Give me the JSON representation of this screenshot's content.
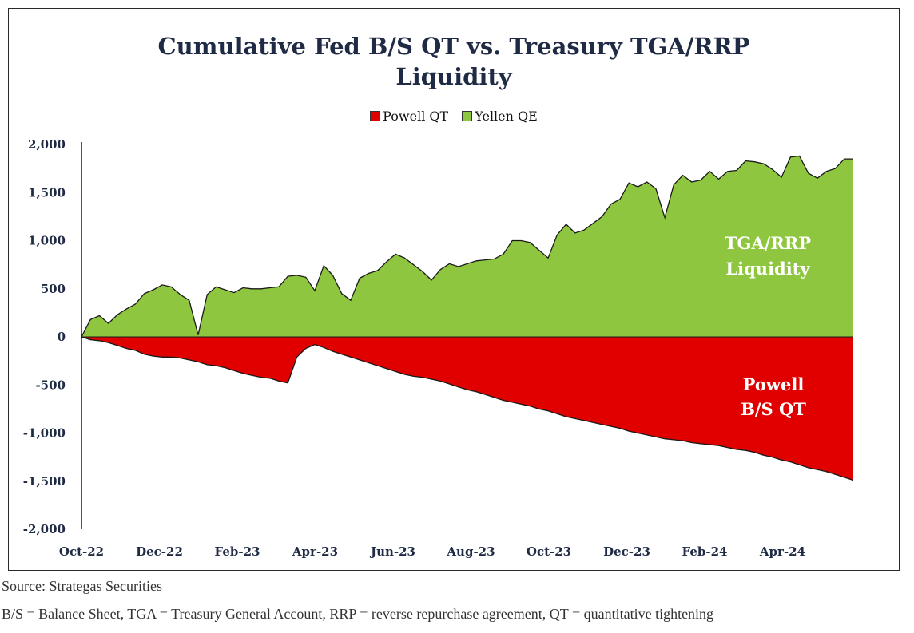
{
  "chart_data": {
    "type": "area",
    "title_line1": "Cumulative Fed B/S QT vs. Treasury TGA/RRP",
    "title_line2": "Liquidity",
    "xlabel": "",
    "ylabel": "",
    "ylim": [
      -2000,
      2000
    ],
    "yticks": [
      2000,
      1500,
      1000,
      500,
      0,
      -500,
      -1000,
      -1500,
      -2000
    ],
    "ytick_labels": [
      "2,000",
      "1,500",
      "1,000",
      "500",
      "0",
      "-500",
      "-1,000",
      "-1,500",
      "-2,000"
    ],
    "xtick_labels": [
      "Oct-22",
      "Dec-22",
      "Feb-23",
      "Apr-23",
      "Jun-23",
      "Aug-23",
      "Oct-23",
      "Dec-23",
      "Feb-24",
      "Apr-24"
    ],
    "x_range_weeks": [
      0,
      86
    ],
    "legend_position": "top-center",
    "grid": false,
    "series": [
      {
        "name": "Powell QT",
        "color": "#e00000",
        "x": [
          0,
          1,
          2,
          3,
          4,
          5,
          6,
          7,
          8,
          9,
          10,
          11,
          12,
          13,
          14,
          15,
          16,
          17,
          18,
          19,
          20,
          21,
          22,
          23,
          24,
          25,
          26,
          27,
          28,
          29,
          30,
          31,
          32,
          33,
          34,
          35,
          36,
          37,
          38,
          39,
          40,
          41,
          42,
          43,
          44,
          45,
          46,
          47,
          48,
          49,
          50,
          51,
          52,
          53,
          54,
          55,
          56,
          57,
          58,
          59,
          60,
          61,
          62,
          63,
          64,
          65,
          66,
          67,
          68,
          69,
          70,
          71,
          72,
          73,
          74,
          75,
          76,
          77,
          78,
          79,
          80,
          81,
          82,
          83,
          84,
          85,
          86
        ],
        "values": [
          0,
          -30,
          -40,
          -60,
          -90,
          -120,
          -140,
          -180,
          -200,
          -210,
          -210,
          -220,
          -240,
          -260,
          -290,
          -300,
          -320,
          -350,
          -380,
          -400,
          -420,
          -430,
          -460,
          -480,
          -210,
          -120,
          -80,
          -110,
          -150,
          -180,
          -210,
          -240,
          -270,
          -300,
          -330,
          -360,
          -390,
          -410,
          -420,
          -440,
          -460,
          -490,
          -520,
          -550,
          -570,
          -600,
          -630,
          -660,
          -680,
          -700,
          -720,
          -750,
          -770,
          -800,
          -830,
          -850,
          -870,
          -890,
          -910,
          -930,
          -950,
          -980,
          -1000,
          -1020,
          -1040,
          -1060,
          -1070,
          -1080,
          -1100,
          -1110,
          -1120,
          -1130,
          -1150,
          -1170,
          -1180,
          -1200,
          -1230,
          -1250,
          -1280,
          -1300,
          -1330,
          -1360,
          -1380,
          -1400,
          -1430,
          -1460,
          -1490
        ]
      },
      {
        "name": "Yellen QE",
        "color": "#8fc640",
        "x": [
          0,
          1,
          2,
          3,
          4,
          5,
          6,
          7,
          8,
          9,
          10,
          11,
          12,
          13,
          14,
          15,
          16,
          17,
          18,
          19,
          20,
          21,
          22,
          23,
          24,
          25,
          26,
          27,
          28,
          29,
          30,
          31,
          32,
          33,
          34,
          35,
          36,
          37,
          38,
          39,
          40,
          41,
          42,
          43,
          44,
          45,
          46,
          47,
          48,
          49,
          50,
          51,
          52,
          53,
          54,
          55,
          56,
          57,
          58,
          59,
          60,
          61,
          62,
          63,
          64,
          65,
          66,
          67,
          68,
          69,
          70,
          71,
          72,
          73,
          74,
          75,
          76,
          77,
          78,
          79,
          80,
          81,
          82,
          83,
          84,
          85,
          86
        ],
        "values": [
          0,
          180,
          220,
          140,
          230,
          290,
          340,
          450,
          490,
          540,
          520,
          440,
          380,
          20,
          440,
          520,
          490,
          460,
          510,
          500,
          500,
          510,
          520,
          630,
          640,
          620,
          480,
          740,
          640,
          450,
          380,
          610,
          660,
          690,
          780,
          860,
          820,
          750,
          680,
          590,
          700,
          760,
          730,
          760,
          790,
          800,
          810,
          860,
          1000,
          1000,
          980,
          900,
          820,
          1060,
          1170,
          1080,
          1110,
          1180,
          1250,
          1380,
          1430,
          1600,
          1560,
          1610,
          1540,
          1240,
          1580,
          1680,
          1610,
          1630,
          1720,
          1640,
          1720,
          1730,
          1830,
          1820,
          1800,
          1740,
          1660,
          1870,
          1880,
          1700,
          1650,
          1720,
          1750,
          1850,
          1850
        ]
      }
    ],
    "annotations": [
      {
        "line1": "TGA/RRP",
        "line2": "Liquidity"
      },
      {
        "line1": "Powell",
        "line2": "B/S QT"
      }
    ]
  },
  "footer": {
    "source": "Source: Strategas Securities",
    "abbreviations": "B/S = Balance Sheet, TGA = Treasury General Account, RRP = reverse repurchase agreement, QT = quantitative tightening"
  }
}
